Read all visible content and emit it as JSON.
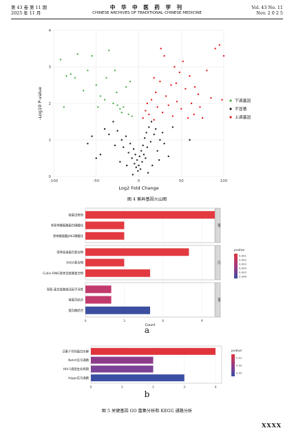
{
  "header": {
    "left_line1": "第 43 卷  第 11 期",
    "left_line2": "2025 年 11 月",
    "center_line1": "中 华 中 医 药 学 刊",
    "center_line2": "CHINESE ARCHIVES OF TRADITIONAL CHINESE MEDICINE",
    "right_line1": "Vol. 43 No. 11",
    "right_line2": "Nov. 2 0 2 5"
  },
  "figure4": {
    "caption": "图 4    差异基因火山图"
  },
  "figure5": {
    "caption": "图 5    关键基因 GO 富集分析和 KEGG 通路分析",
    "label_a": "a",
    "label_b": "b"
  },
  "page_number": "XXXX",
  "chart_data": [
    {
      "type": "scatter",
      "title": "",
      "xlabel": "Log2 Fold Change",
      "ylabel": "-Log10 P-value",
      "xlim": [
        -100,
        100
      ],
      "ylim": [
        0,
        4
      ],
      "x_ticks": [
        "-100",
        "-50",
        "0",
        "50",
        "100"
      ],
      "y_ticks": [
        "0",
        "1",
        "2",
        "3",
        "4"
      ],
      "grid": true,
      "legend_position": "right",
      "series": [
        {
          "name": "下调基因",
          "color": "#4daf4a",
          "points": [
            [
              -92,
              3.2
            ],
            [
              -85,
              2.75
            ],
            [
              -80,
              2.8
            ],
            [
              -75,
              2.7
            ],
            [
              -72,
              3.35
            ],
            [
              -65,
              2.35
            ],
            [
              -55,
              3.3
            ],
            [
              -50,
              2.5
            ],
            [
              -45,
              2.2
            ],
            [
              -40,
              2.1
            ],
            [
              -35,
              3.45
            ],
            [
              -30,
              2.0
            ],
            [
              -28,
              2.9
            ],
            [
              -25,
              1.95
            ],
            [
              -22,
              1.85
            ],
            [
              -20,
              1.75
            ],
            [
              -18,
              1.9
            ],
            [
              -15,
              2.45
            ],
            [
              -12,
              1.7
            ],
            [
              -10,
              2.6
            ],
            [
              -8,
              1.65
            ],
            [
              -38,
              2.7
            ],
            [
              -60,
              2.9
            ],
            [
              -48,
              1.9
            ],
            [
              -26,
              2.3
            ],
            [
              -88,
              1.9
            ]
          ]
        },
        {
          "name": "不显著",
          "color": "#222222",
          "points": [
            [
              -40,
              1.3
            ],
            [
              -35,
              1.15
            ],
            [
              -30,
              1.5
            ],
            [
              -25,
              1.25
            ],
            [
              -20,
              1.0
            ],
            [
              -18,
              0.8
            ],
            [
              -15,
              1.1
            ],
            [
              -12,
              0.65
            ],
            [
              -10,
              0.9
            ],
            [
              -8,
              0.5
            ],
            [
              -6,
              0.75
            ],
            [
              -5,
              0.35
            ],
            [
              -4,
              0.6
            ],
            [
              -3,
              0.25
            ],
            [
              -2,
              0.45
            ],
            [
              -1,
              0.15
            ],
            [
              0,
              0.3
            ],
            [
              1,
              0.55
            ],
            [
              2,
              0.2
            ],
            [
              3,
              0.7
            ],
            [
              4,
              0.4
            ],
            [
              5,
              0.85
            ],
            [
              6,
              0.6
            ],
            [
              7,
              1.05
            ],
            [
              8,
              0.5
            ],
            [
              9,
              1.2
            ],
            [
              10,
              0.8
            ],
            [
              12,
              1.35
            ],
            [
              14,
              0.95
            ],
            [
              15,
              1.5
            ],
            [
              18,
              1.15
            ],
            [
              20,
              1.3
            ],
            [
              22,
              0.7
            ],
            [
              25,
              1.0
            ],
            [
              28,
              1.2
            ],
            [
              30,
              0.9
            ],
            [
              -45,
              0.6
            ],
            [
              35,
              0.55
            ],
            [
              -22,
              0.4
            ],
            [
              -14,
              0.3
            ],
            [
              16,
              0.3
            ],
            [
              24,
              0.45
            ],
            [
              -60,
              0.9
            ],
            [
              -55,
              1.1
            ],
            [
              -28,
              0.85
            ],
            [
              40,
              1.35
            ],
            [
              -50,
              0.5
            ],
            [
              60,
              1.0
            ],
            [
              11,
              0.1
            ],
            [
              -7,
              0.05
            ]
          ]
        },
        {
          "name": "上调基因",
          "color": "#e41a1c",
          "points": [
            [
              5,
              1.6
            ],
            [
              8,
              1.8
            ],
            [
              10,
              2.0
            ],
            [
              12,
              1.7
            ],
            [
              15,
              2.1
            ],
            [
              18,
              1.55
            ],
            [
              20,
              2.3
            ],
            [
              22,
              1.9
            ],
            [
              25,
              2.6
            ],
            [
              28,
              1.75
            ],
            [
              30,
              3.3
            ],
            [
              32,
              2.2
            ],
            [
              35,
              1.95
            ],
            [
              38,
              2.5
            ],
            [
              40,
              1.65
            ],
            [
              42,
              3.0
            ],
            [
              45,
              2.05
            ],
            [
              48,
              2.85
            ],
            [
              50,
              1.85
            ],
            [
              52,
              3.15
            ],
            [
              55,
              2.4
            ],
            [
              58,
              1.6
            ],
            [
              60,
              2.75
            ],
            [
              62,
              2.0
            ],
            [
              65,
              1.7
            ],
            [
              70,
              2.25
            ],
            [
              75,
              1.6
            ],
            [
              80,
              2.9
            ],
            [
              85,
              2.15
            ],
            [
              90,
              3.5
            ],
            [
              95,
              3.6
            ],
            [
              98,
              2.1
            ],
            [
              100,
              3.3
            ],
            [
              18,
              2.7
            ],
            [
              26,
              3.5
            ],
            [
              44,
              2.55
            ],
            [
              66,
              2.45
            ],
            [
              72,
              1.9
            ]
          ]
        }
      ]
    },
    {
      "type": "bar",
      "orientation": "horizontal",
      "xlabel": "Count",
      "x_ticks": [
        "0",
        "3",
        "6",
        "9"
      ],
      "xlim": [
        0,
        10
      ],
      "legend_title": "pvalue",
      "legend_labels": [
        "0.001",
        "0.002",
        "0.003",
        "0.004",
        "0.005",
        "0.006"
      ],
      "legend_position": "right",
      "panels": [
        {
          "strip_label": "BP",
          "categories": [
            "核蛋白修饰",
            "非受体酪氨酸蛋白磷酸化",
            "受体酪氨酸JAK2磷酸化"
          ],
          "values": [
            10,
            3,
            3
          ],
          "colors": [
            "#e23a40",
            "#e23a40",
            "#e23a40"
          ]
        },
        {
          "strip_label": "CC",
          "categories": [
            "受体连接蛋白复合物",
            "SAGA复合物",
            "Cullin-RING受体连接酶复合物"
          ],
          "values": [
            8,
            3,
            5
          ],
          "colors": [
            "#e23a40",
            "#e23a40",
            "#e23a40"
          ]
        },
        {
          "strip_label": "MF",
          "categories": [
            "受复-蛋白肽酶激活因子活性",
            "接蛋白结合",
            "蛋白酶结合"
          ],
          "values": [
            2,
            2,
            5
          ],
          "colors": [
            "#c13a6c",
            "#c13a6c",
            "#3c4ea0"
          ]
        }
      ]
    },
    {
      "type": "bar",
      "orientation": "horizontal",
      "x_ticks": [
        "0",
        "1",
        "2",
        "3",
        "4"
      ],
      "xlim": [
        0,
        4.2
      ],
      "legend_title": "pvalue",
      "legend_labels": [
        "0.01",
        "0.02",
        "0.03"
      ],
      "legend_position": "right",
      "categories": [
        "泛素介导的蛋白水解",
        "Notch信号通路",
        "HIV-1感染生命周期",
        "Hippo信号通路"
      ],
      "values": [
        4,
        2,
        2,
        3
      ],
      "colors": [
        "#e0343c",
        "#8d3c8c",
        "#7d4295",
        "#3a4ea3"
      ]
    }
  ]
}
